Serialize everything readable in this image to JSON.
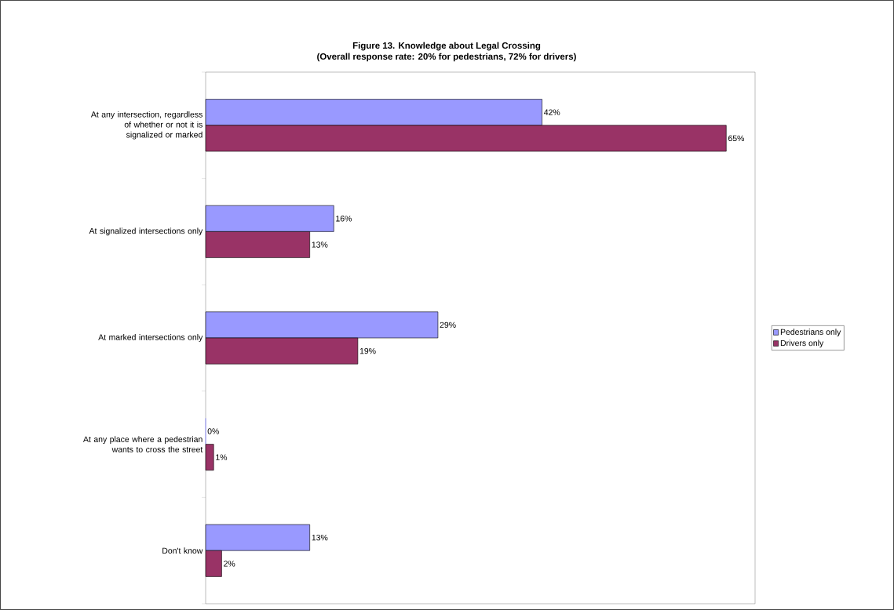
{
  "chart_data": {
    "type": "bar",
    "orientation": "horizontal",
    "title": "Figure 13. Knowledge about Legal Crossing",
    "subtitle": "(Overall response rate: 20% for pedestrians, 72% for drivers)",
    "categories": [
      "At any intersection, regardless of whether or not it is signalized or marked",
      "At signalized intersections only",
      "At marked intersections only",
      "At any place where a pedestrian wants to cross the street",
      "Don't know"
    ],
    "series": [
      {
        "name": "Pedestrians only",
        "color": "#9999ff",
        "values": [
          42,
          16,
          29,
          0,
          13
        ],
        "value_labels": [
          "42%",
          "16%",
          "29%",
          "0%",
          "13%"
        ]
      },
      {
        "name": "Drivers only",
        "color": "#993366",
        "values": [
          65,
          13,
          19,
          1,
          2
        ],
        "value_labels": [
          "65%",
          "13%",
          "19%",
          "1%",
          "2%"
        ]
      }
    ],
    "xlim": [
      0,
      68.6
    ],
    "legend": "right",
    "tick_labels": "y"
  }
}
